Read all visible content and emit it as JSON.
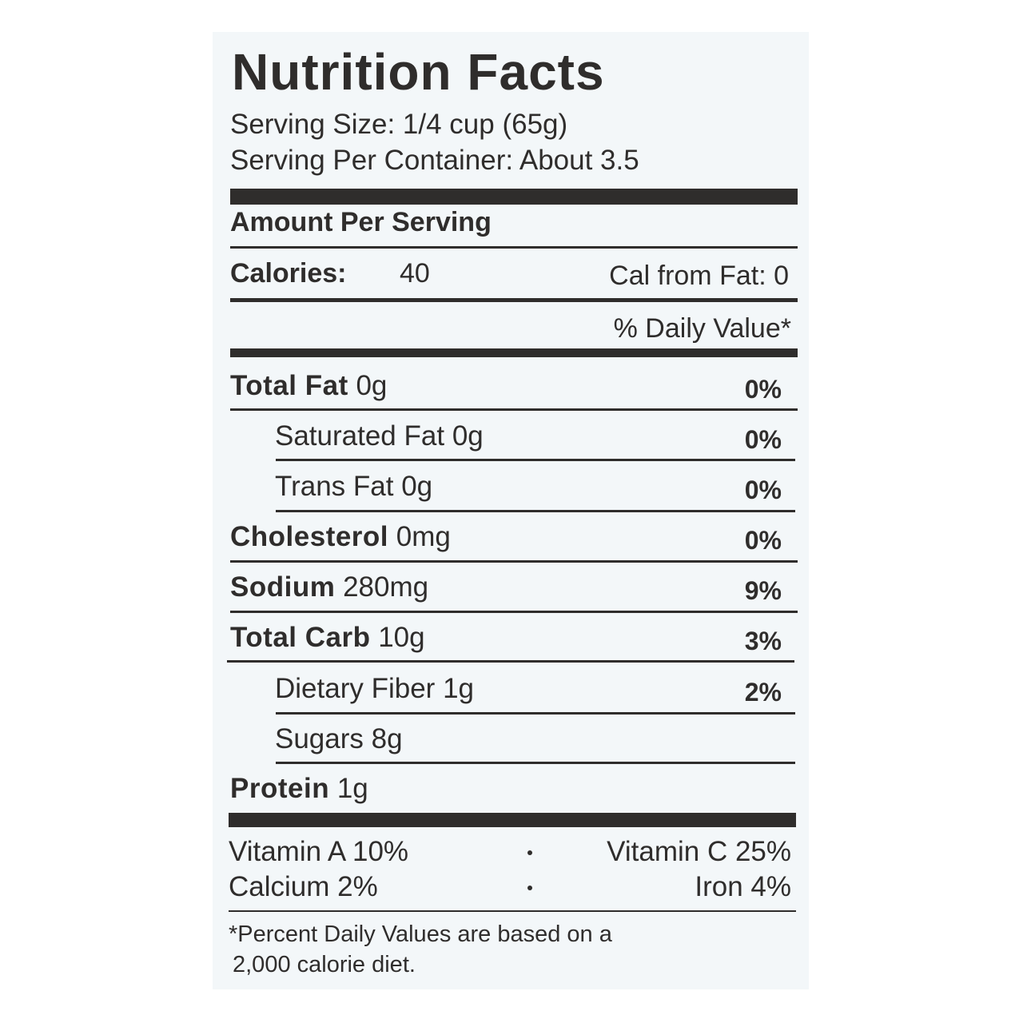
{
  "title": "Nutrition Facts",
  "serving_size": "Serving Size: 1/4 cup (65g)",
  "servings_per_container": "Serving Per Container: About 3.5",
  "amount_per_serving": "Amount Per Serving",
  "calories": {
    "label": "Calories:",
    "value": "40",
    "from_fat": "Cal from Fat: 0"
  },
  "daily_value_header": "% Daily Value*",
  "nutrients": [
    {
      "name": "Total Fat",
      "amount": "0g",
      "dv": "0%"
    },
    {
      "name": "Saturated Fat",
      "amount": "0g",
      "dv": "0%"
    },
    {
      "name": "Trans Fat",
      "amount": "0g",
      "dv": "0%"
    },
    {
      "name": "Cholesterol",
      "amount": "0mg",
      "dv": "0%"
    },
    {
      "name": "Sodium",
      "amount": "280mg",
      "dv": "9%"
    },
    {
      "name": "Total Carb",
      "amount": "10g",
      "dv": "3%"
    },
    {
      "name": "Dietary Fiber",
      "amount": "1g",
      "dv": "2%"
    },
    {
      "name": "Sugars",
      "amount": "8g"
    },
    {
      "name": "Protein",
      "amount": "1g"
    }
  ],
  "vitamins": [
    [
      "Vitamin A 10%",
      "Vitamin C 25%"
    ],
    [
      "Calcium 2%",
      "Iron 4%"
    ]
  ],
  "footnote": [
    "*Percent Daily Values are based on a",
    "2,000 calorie diet."
  ]
}
